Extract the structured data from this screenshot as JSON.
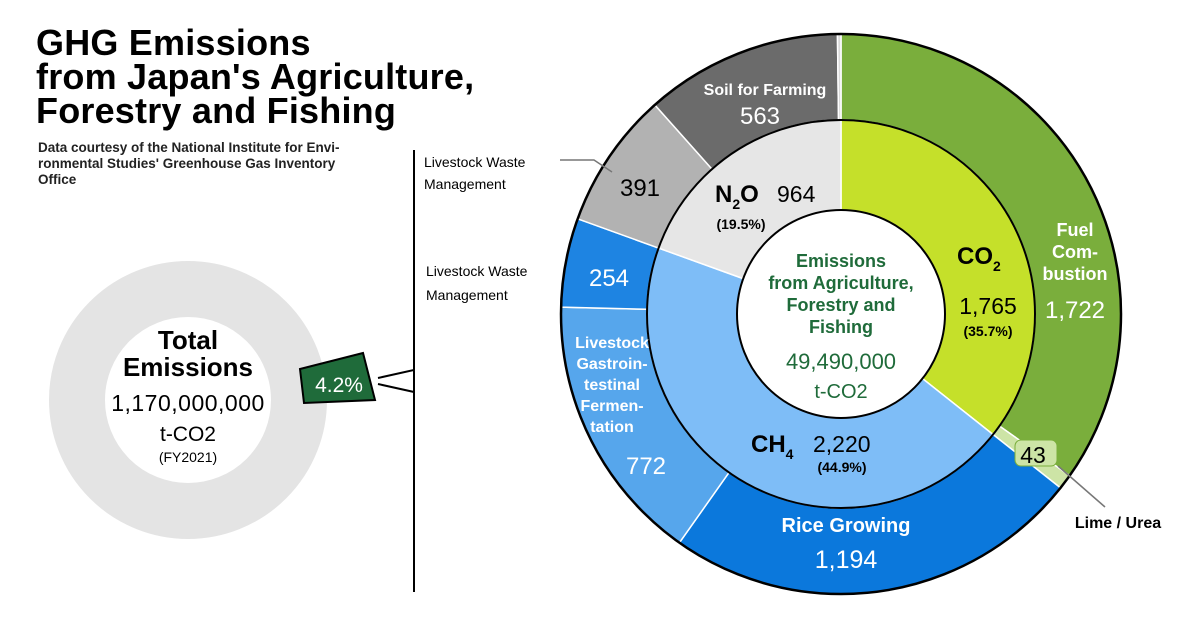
{
  "title_lines": [
    "GHG Emissions",
    "from Japan's Agriculture,",
    "Forestry and Fishing"
  ],
  "credit_lines": [
    "Data courtesy of the National Institute for Envi-",
    "ronmental Studies' Greenhouse Gas Inventory",
    "Office"
  ],
  "colors": {
    "total_ring": "#e4e4e4",
    "share_tab": "#1f6b3a",
    "co2_inner": "#c5e02a",
    "fuel_combustion": "#7aae3c",
    "lime_urea": "#cde4a6",
    "ch4_inner": "#7ebdf7",
    "rice_growing": "#0b78dc",
    "enteric": "#56a6ec",
    "ch4_manure": "#1e84e2",
    "n2o_inner": "#e6e6e6",
    "n2o_manure": "#b2b2b2",
    "soil": "#6b6b6b",
    "center_text": "#1f6b3a"
  },
  "chart_data": [
    {
      "type": "donut",
      "name": "total",
      "title_lines": [
        "Total",
        "Emissions"
      ],
      "total_value": "1,170,000,000",
      "unit": "t-CO2",
      "period": "(FY2021)",
      "share_label": "4.2%",
      "share_percent": 4.2
    },
    {
      "type": "nested-donut",
      "name": "agriculture",
      "center_lines": [
        "Emissions",
        "from Agriculture,",
        "Forestry and",
        "Fishing"
      ],
      "center_value": "49,490,000",
      "center_unit": "t-CO2",
      "unit": "10,000 t-CO2",
      "inner": [
        {
          "key": "co2",
          "gas": "CO",
          "sub": "2",
          "value": 1765,
          "value_label": "1,765",
          "pct_label": "(35.7%)"
        },
        {
          "key": "ch4",
          "gas": "CH",
          "sub": "4",
          "value": 2220,
          "value_label": "2,220",
          "pct_label": "(44.9%)"
        },
        {
          "key": "n2o",
          "gas": "N",
          "sub": "2",
          "gas2": "O",
          "value": 964,
          "value_label": "964",
          "pct_label": "(19.5%)"
        }
      ],
      "outer": [
        {
          "key": "fuel",
          "gas": "co2",
          "label_lines": [
            "Fuel",
            "Com-",
            "bustion"
          ],
          "value": 1722,
          "value_label": "1,722"
        },
        {
          "key": "lime",
          "gas": "co2",
          "label_lines": [
            "Lime / Urea"
          ],
          "value": 43,
          "value_label": "43"
        },
        {
          "key": "rice",
          "gas": "ch4",
          "label_lines": [
            "Rice Growing"
          ],
          "value": 1194,
          "value_label": "1,194"
        },
        {
          "key": "enteric",
          "gas": "ch4",
          "label_lines": [
            "Livestock",
            "Gastroin-",
            "testinal",
            "Fermen-",
            "tation"
          ],
          "value": 772,
          "value_label": "772"
        },
        {
          "key": "ch4_manure",
          "gas": "ch4",
          "label_lines": [
            "Livestock Waste",
            "Management"
          ],
          "value": 254,
          "value_label": "254"
        },
        {
          "key": "n2o_manure",
          "gas": "n2o",
          "label_lines": [
            "Livestock Waste",
            "Management"
          ],
          "value": 391,
          "value_label": "391"
        },
        {
          "key": "soil",
          "gas": "n2o",
          "label_lines": [
            "Soil for Farming"
          ],
          "value": 563,
          "value_label": "563"
        },
        {
          "key": "other",
          "gas": "n2o",
          "label_lines": [],
          "value": 10,
          "value_label": ""
        }
      ]
    }
  ]
}
